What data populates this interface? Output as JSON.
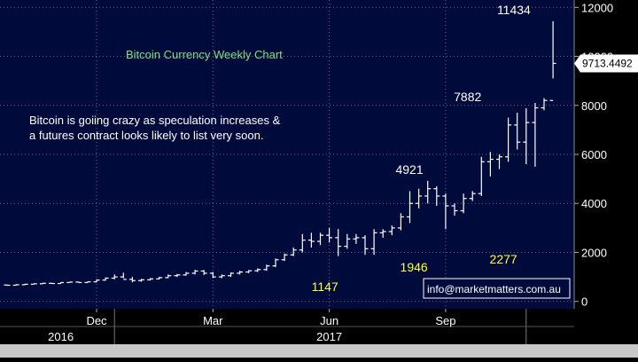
{
  "chart_data": {
    "type": "ohlc",
    "title": "Bitcoin Currency Weekly Chart",
    "annotation": "Bitcoin is goiing crazy as speculation increases &\na futures contract looks likely to list very soon.",
    "watermark": "info@marketmatters.com.au",
    "x_tick_labels": [
      {
        "label": "Dec",
        "week": 10
      },
      {
        "label": "Mar",
        "week": 23
      },
      {
        "label": "Jun",
        "week": 36
      },
      {
        "label": "Sep",
        "week": 49
      }
    ],
    "year_labels": [
      {
        "label": "2016",
        "week": 6
      },
      {
        "label": "2017",
        "week": 36
      }
    ],
    "y_ticks": [
      0,
      2000,
      4000,
      6000,
      8000,
      10000,
      12000
    ],
    "ylim": [
      -300,
      12300
    ],
    "last_value": "9713.4492",
    "grid": true,
    "point_labels": [
      {
        "text": "11434",
        "week": 58.5,
        "value": 11434,
        "color": "#ffffff",
        "pos": "above"
      },
      {
        "text": "7882",
        "week": 53,
        "value": 7882,
        "color": "#ffffff",
        "pos": "above"
      },
      {
        "text": "4921",
        "week": 46.5,
        "value": 4921,
        "color": "#ffffff",
        "pos": "above"
      },
      {
        "text": "1946",
        "week": 47,
        "value": 1946,
        "color": "#ffff33",
        "pos": "below"
      },
      {
        "text": "1147",
        "week": 37,
        "value": 1147,
        "color": "#ffff33",
        "pos": "below"
      },
      {
        "text": "2277",
        "week": 57,
        "value": 2277,
        "color": "#ffff33",
        "pos": "below"
      }
    ],
    "bars": [
      [
        670,
        680,
        650,
        660
      ],
      [
        660,
        700,
        650,
        680
      ],
      [
        680,
        720,
        670,
        700
      ],
      [
        700,
        730,
        690,
        720
      ],
      [
        720,
        760,
        710,
        740
      ],
      [
        740,
        760,
        720,
        730
      ],
      [
        730,
        780,
        720,
        770
      ],
      [
        770,
        800,
        760,
        790
      ],
      [
        790,
        800,
        760,
        770
      ],
      [
        770,
        810,
        760,
        800
      ],
      [
        800,
        900,
        780,
        870
      ],
      [
        870,
        980,
        850,
        950
      ],
      [
        950,
        1100,
        900,
        1000
      ],
      [
        1000,
        1170,
        950,
        900
      ],
      [
        900,
        1000,
        780,
        850
      ],
      [
        850,
        920,
        800,
        880
      ],
      [
        880,
        950,
        850,
        920
      ],
      [
        920,
        1000,
        900,
        970
      ],
      [
        970,
        1100,
        950,
        1050
      ],
      [
        1050,
        1120,
        1000,
        1080
      ],
      [
        1080,
        1200,
        1050,
        1150
      ],
      [
        1150,
        1290,
        1100,
        1240
      ],
      [
        1240,
        1280,
        1080,
        1150
      ],
      [
        1150,
        1200,
        950,
        1000
      ],
      [
        1000,
        1100,
        950,
        1050
      ],
      [
        1050,
        1180,
        1000,
        1150
      ],
      [
        1150,
        1250,
        1100,
        1200
      ],
      [
        1200,
        1280,
        1150,
        1250
      ],
      [
        1250,
        1350,
        1200,
        1300
      ],
      [
        1300,
        1500,
        1250,
        1450
      ],
      [
        1450,
        1750,
        1400,
        1700
      ],
      [
        1700,
        1950,
        1650,
        1900
      ],
      [
        1900,
        2200,
        1850,
        2100
      ],
      [
        2100,
        2750,
        2000,
        2500
      ],
      [
        2500,
        2800,
        2200,
        2450
      ],
      [
        2450,
        2800,
        2300,
        2700
      ],
      [
        2700,
        3000,
        2400,
        2600
      ],
      [
        2600,
        2950,
        1850,
        2250
      ],
      [
        2250,
        2750,
        2150,
        2550
      ],
      [
        2550,
        2750,
        2350,
        2600
      ],
      [
        2600,
        2700,
        1900,
        2150
      ],
      [
        2150,
        2950,
        1900,
        2800
      ],
      [
        2800,
        2950,
        2600,
        2850
      ],
      [
        2850,
        3100,
        2700,
        3000
      ],
      [
        3000,
        3600,
        2900,
        3450
      ],
      [
        3450,
        4500,
        3200,
        4000
      ],
      [
        4000,
        4600,
        3800,
        4300
      ],
      [
        4300,
        4921,
        4000,
        4600
      ],
      [
        4600,
        4700,
        3900,
        4300
      ],
      [
        4300,
        4400,
        2950,
        3900
      ],
      [
        3900,
        4000,
        3500,
        3700
      ],
      [
        3700,
        4400,
        3600,
        4200
      ],
      [
        4200,
        4500,
        4100,
        4400
      ],
      [
        4400,
        5900,
        4300,
        5700
      ],
      [
        5700,
        6100,
        5100,
        5800
      ],
      [
        5800,
        6000,
        5400,
        5900
      ],
      [
        5900,
        7500,
        5700,
        7200
      ],
      [
        7200,
        7700,
        6200,
        6500
      ],
      [
        6500,
        7882,
        5600,
        7300
      ],
      [
        7300,
        8100,
        5500,
        7900
      ],
      [
        7900,
        8300,
        7800,
        8200
      ],
      [
        8200,
        11434,
        9100,
        9713
      ]
    ]
  }
}
